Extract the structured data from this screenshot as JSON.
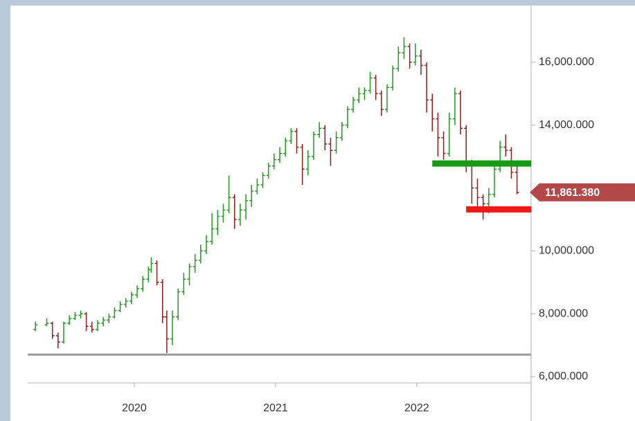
{
  "chart_data": {
    "type": "ohlc",
    "up_color": "#1f9a1f",
    "down_color": "#8e1c1c",
    "xlim": [
      2019.245,
      2022.81
    ],
    "xticks": [
      2020,
      2021,
      2022
    ],
    "ylim": [
      5800,
      17650
    ],
    "yticks": [
      {
        "value": 6000,
        "label": "6,000.000"
      },
      {
        "value": 8000,
        "label": "8,000.000"
      },
      {
        "value": 10000,
        "label": "10,000.000"
      },
      {
        "value": 14000,
        "label": "14,000.000"
      },
      {
        "value": 16000,
        "label": "16,000.000"
      }
    ],
    "x": [
      2019.3,
      2019.38,
      2019.42,
      2019.46,
      2019.5,
      2019.54,
      2019.58,
      2019.62,
      2019.66,
      2019.7,
      2019.74,
      2019.78,
      2019.82,
      2019.86,
      2019.9,
      2019.94,
      2019.98,
      2020.02,
      2020.06,
      2020.1,
      2020.12,
      2020.16,
      2020.2,
      2020.23,
      2020.27,
      2020.31,
      2020.35,
      2020.39,
      2020.43,
      2020.47,
      2020.51,
      2020.55,
      2020.59,
      2020.63,
      2020.67,
      2020.71,
      2020.75,
      2020.79,
      2020.83,
      2020.87,
      2020.91,
      2020.95,
      2020.99,
      2021.03,
      2021.07,
      2021.11,
      2021.15,
      2021.19,
      2021.23,
      2021.27,
      2021.31,
      2021.35,
      2021.39,
      2021.43,
      2021.47,
      2021.51,
      2021.55,
      2021.59,
      2021.63,
      2021.67,
      2021.71,
      2021.75,
      2021.79,
      2021.83,
      2021.87,
      2021.91,
      2021.95,
      2021.99,
      2022.03,
      2022.07,
      2022.11,
      2022.15,
      2022.19,
      2022.23,
      2022.27,
      2022.31,
      2022.35,
      2022.39,
      2022.43,
      2022.47,
      2022.51,
      2022.55,
      2022.59,
      2022.63,
      2022.67,
      2022.71
    ],
    "ohlc": [
      [
        7500,
        7750,
        7450,
        7650
      ],
      [
        7650,
        7850,
        7600,
        7700
      ],
      [
        7700,
        7750,
        7200,
        7300
      ],
      [
        7300,
        7400,
        6900,
        7100
      ],
      [
        7100,
        7750,
        7050,
        7700
      ],
      [
        7700,
        7950,
        7650,
        7850
      ],
      [
        7850,
        8050,
        7800,
        7950
      ],
      [
        7950,
        8100,
        7850,
        8000
      ],
      [
        8000,
        8050,
        7450,
        7600
      ],
      [
        7600,
        7750,
        7400,
        7500
      ],
      [
        7500,
        7800,
        7450,
        7700
      ],
      [
        7700,
        7900,
        7600,
        7800
      ],
      [
        7800,
        8000,
        7700,
        7900
      ],
      [
        7900,
        8200,
        7850,
        8100
      ],
      [
        8100,
        8400,
        8050,
        8300
      ],
      [
        8300,
        8500,
        8200,
        8400
      ],
      [
        8400,
        8700,
        8300,
        8600
      ],
      [
        8600,
        8900,
        8500,
        8800
      ],
      [
        8800,
        9200,
        8700,
        9100
      ],
      [
        9100,
        9500,
        9000,
        9400
      ],
      [
        9400,
        9800,
        9300,
        9600
      ],
      [
        9600,
        9700,
        8900,
        9000
      ],
      [
        9000,
        9100,
        7700,
        7900
      ],
      [
        7900,
        8100,
        6750,
        7200
      ],
      [
        7200,
        8100,
        7000,
        7900
      ],
      [
        7900,
        8800,
        7800,
        8700
      ],
      [
        8700,
        9300,
        8600,
        9100
      ],
      [
        9100,
        9600,
        8900,
        9500
      ],
      [
        9500,
        9900,
        9300,
        9700
      ],
      [
        9700,
        10200,
        9600,
        10000
      ],
      [
        10000,
        10500,
        9900,
        10300
      ],
      [
        10300,
        11200,
        10200,
        10700
      ],
      [
        10700,
        11300,
        10500,
        11100
      ],
      [
        11100,
        11500,
        10900,
        11300
      ],
      [
        11300,
        12400,
        11200,
        11700
      ],
      [
        11700,
        11800,
        10700,
        11000
      ],
      [
        11000,
        11500,
        10800,
        11300
      ],
      [
        11300,
        11800,
        11000,
        11600
      ],
      [
        11600,
        12100,
        11400,
        11900
      ],
      [
        11900,
        12300,
        11800,
        12100
      ],
      [
        12100,
        12500,
        12000,
        12400
      ],
      [
        12400,
        12800,
        12300,
        12700
      ],
      [
        12700,
        13100,
        12600,
        12900
      ],
      [
        12900,
        13300,
        12800,
        13100
      ],
      [
        13100,
        13600,
        13000,
        13500
      ],
      [
        13500,
        13900,
        13400,
        13800
      ],
      [
        13800,
        13900,
        13100,
        13300
      ],
      [
        13300,
        13400,
        12100,
        12600
      ],
      [
        12600,
        13200,
        12400,
        13000
      ],
      [
        13000,
        13800,
        12900,
        13700
      ],
      [
        13700,
        14100,
        13600,
        13900
      ],
      [
        13900,
        14000,
        13200,
        13400
      ],
      [
        13400,
        13600,
        12700,
        13200
      ],
      [
        13200,
        13800,
        13100,
        13600
      ],
      [
        13600,
        14100,
        13500,
        14000
      ],
      [
        14000,
        14600,
        13900,
        14500
      ],
      [
        14500,
        14900,
        14400,
        14800
      ],
      [
        14800,
        15200,
        14700,
        15000
      ],
      [
        15000,
        15200,
        14800,
        15100
      ],
      [
        15100,
        15700,
        15000,
        15500
      ],
      [
        15500,
        15600,
        14800,
        15000
      ],
      [
        15000,
        15100,
        14300,
        14500
      ],
      [
        14500,
        15300,
        14400,
        15200
      ],
      [
        15200,
        15900,
        15100,
        15800
      ],
      [
        15800,
        16500,
        15700,
        16300
      ],
      [
        16300,
        16800,
        16100,
        16500
      ],
      [
        16500,
        16600,
        15800,
        16000
      ],
      [
        16000,
        16600,
        15900,
        16200
      ],
      [
        16200,
        16400,
        15600,
        15900
      ],
      [
        15900,
        16000,
        14400,
        14800
      ],
      [
        14800,
        15000,
        13800,
        14200
      ],
      [
        14200,
        14400,
        13000,
        13600
      ],
      [
        13600,
        13800,
        12900,
        13100
      ],
      [
        13100,
        14400,
        13000,
        14200
      ],
      [
        14200,
        15200,
        14000,
        15000
      ],
      [
        15000,
        15100,
        13700,
        13900
      ],
      [
        13900,
        14000,
        12500,
        12700
      ],
      [
        12700,
        12900,
        11500,
        12000
      ],
      [
        12000,
        12300,
        11300,
        11700
      ],
      [
        11700,
        11800,
        11000,
        11500
      ],
      [
        11500,
        12000,
        11200,
        11800
      ],
      [
        11800,
        12800,
        11700,
        12600
      ],
      [
        12600,
        13500,
        12500,
        13300
      ],
      [
        13300,
        13700,
        13000,
        13200
      ],
      [
        13200,
        13300,
        12300,
        12500
      ],
      [
        12500,
        12700,
        11800,
        11861.38
      ]
    ],
    "levels": [
      {
        "value": 6700,
        "color": "#9a9a9a",
        "width": 3
      },
      {
        "value": 12780,
        "color": "#169a16",
        "width": 9,
        "start": 2022.11
      },
      {
        "value": 11320,
        "color": "#f01818",
        "width": 9,
        "start": 2022.35
      }
    ],
    "last_price": {
      "value": 11861.38,
      "label": "11,861.380",
      "color": "#b24848"
    }
  }
}
